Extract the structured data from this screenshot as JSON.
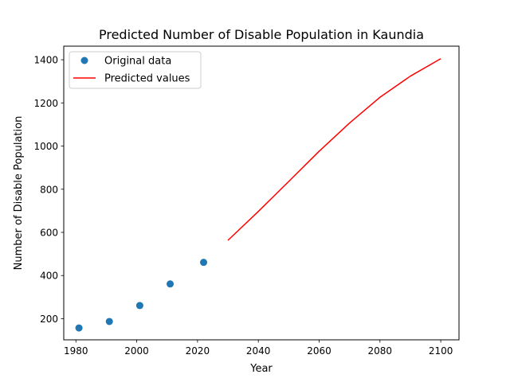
{
  "chart_data": {
    "type": "line",
    "title": "Predicted Number of Disable Population in Kaundia",
    "xlabel": "Year",
    "ylabel": "Number of Disable Population",
    "xlim": [
      1976,
      2106
    ],
    "ylim": [
      102,
      1463
    ],
    "xticks": [
      1980,
      2000,
      2020,
      2040,
      2060,
      2080,
      2100
    ],
    "yticks": [
      200,
      400,
      600,
      800,
      1000,
      1200,
      1400
    ],
    "grid": false,
    "legend_position": "upper-left",
    "series": [
      {
        "name": "Original data",
        "style": "scatter",
        "color": "#1f77b4",
        "x": [
          1981,
          1991,
          2001,
          2011,
          2022
        ],
        "y": [
          157,
          187,
          261,
          361,
          461
        ]
      },
      {
        "name": "Predicted values",
        "style": "line",
        "color": "#ff0000",
        "x": [
          2030,
          2040,
          2050,
          2060,
          2070,
          2080,
          2090,
          2100
        ],
        "y": [
          563,
          697,
          836,
          976,
          1107,
          1226,
          1324,
          1405
        ]
      }
    ]
  }
}
